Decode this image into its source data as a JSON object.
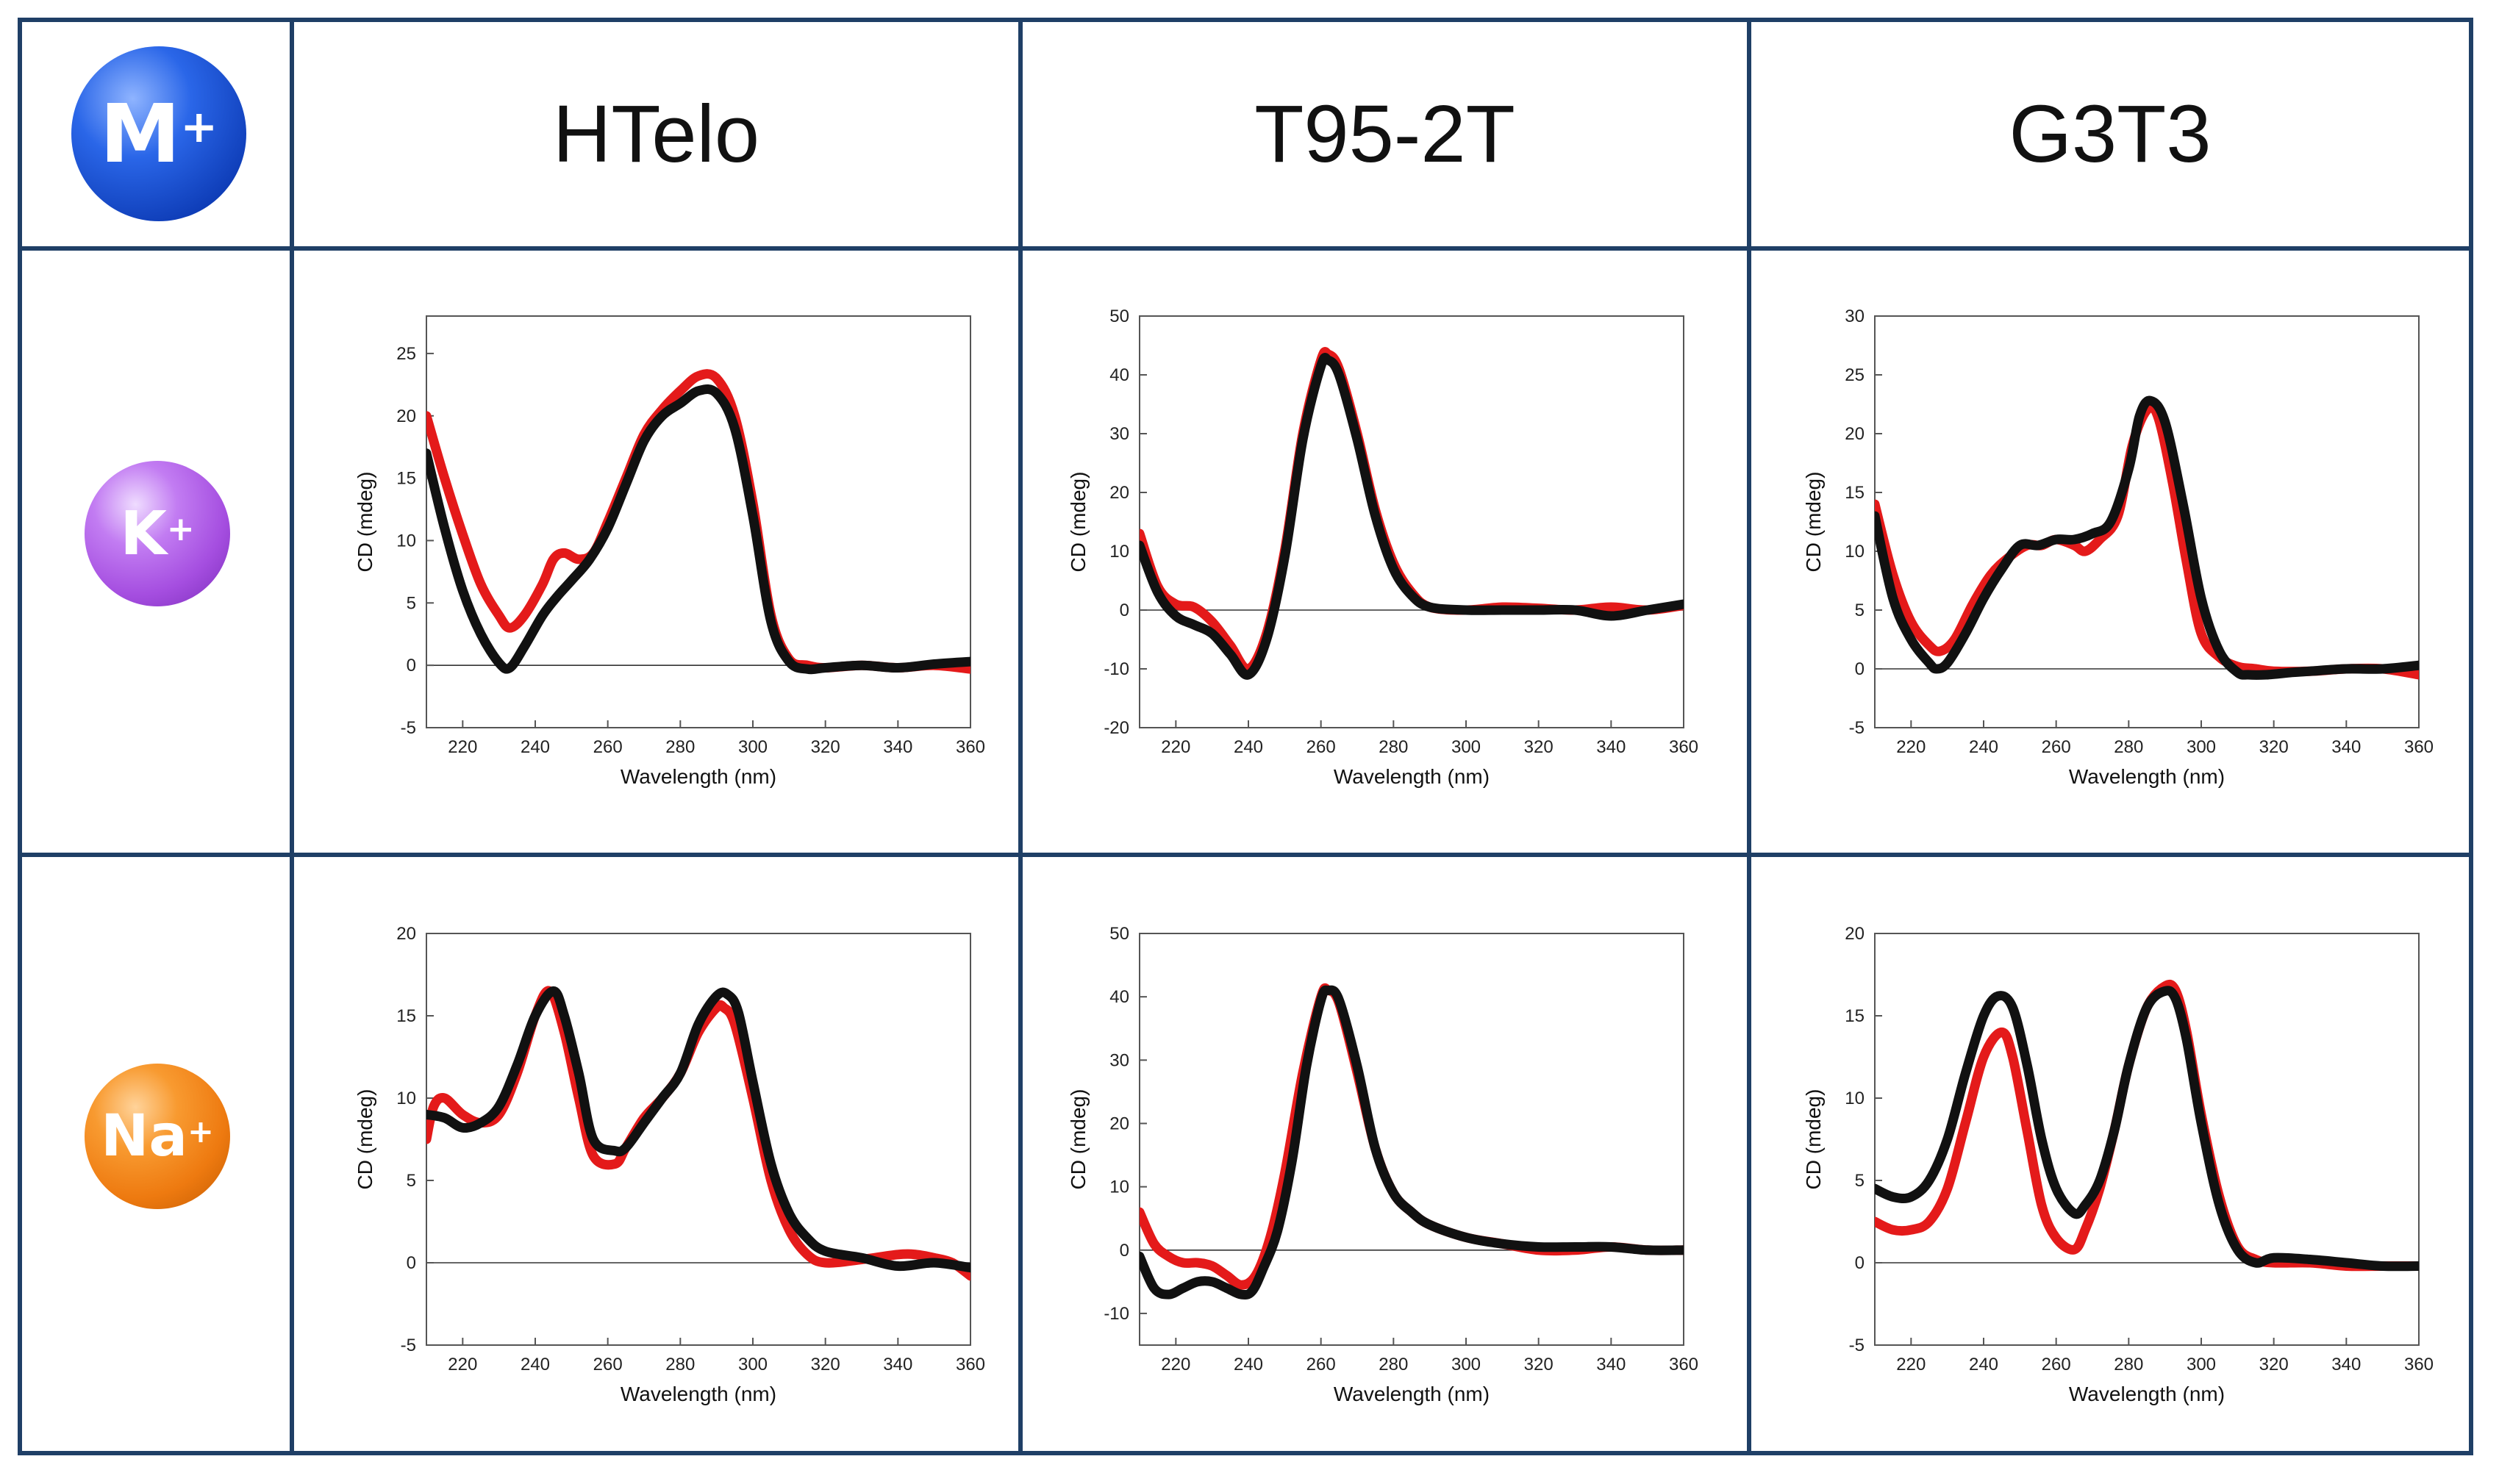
{
  "header": {
    "ion_label": "M",
    "ion_sup": "+",
    "columns": [
      "HTelo",
      "T95-2T",
      "G3T3"
    ]
  },
  "rows": [
    {
      "ion": "K",
      "sup": "+",
      "color": "#a54ee0"
    },
    {
      "ion": "Na",
      "sup": "+",
      "color": "#ee7a10"
    }
  ],
  "colors": {
    "grid": "#1f3f66",
    "red": "#e41a1a",
    "black": "#111111",
    "m_ball": "#1e56d8"
  },
  "chart_data": [
    {
      "type": "line",
      "panel": "HTelo-K",
      "xlabel": "Wavelength (nm)",
      "ylabel": "CD (mdeg)",
      "xlim": [
        210,
        360
      ],
      "ylim": [
        -5,
        28
      ],
      "xticks": [
        220,
        240,
        260,
        280,
        300,
        320,
        340,
        360
      ],
      "xtick_labels": [
        "220",
        "240",
        "260",
        "280",
        "300",
        "320",
        "340",
        "360"
      ],
      "yticks": [
        -5,
        0,
        5,
        10,
        15,
        20,
        25
      ],
      "ytick_labels": [
        "-5",
        "0",
        "5",
        "10",
        "15",
        "20",
        "25"
      ],
      "series": [
        {
          "name": "red",
          "x": [
            210,
            215,
            220,
            225,
            230,
            233,
            237,
            242,
            245,
            248,
            252,
            256,
            260,
            265,
            270,
            275,
            280,
            285,
            290,
            295,
            300,
            305,
            310,
            315,
            320,
            330,
            340,
            350,
            360
          ],
          "y": [
            20,
            15,
            10.5,
            6.5,
            4,
            3,
            4,
            6.5,
            8.5,
            9,
            8.5,
            9,
            11.5,
            15,
            18.5,
            20.5,
            22,
            23.2,
            23,
            20,
            13,
            4,
            0.5,
            0,
            -0.2,
            0,
            -0.2,
            0,
            -0.3
          ]
        },
        {
          "name": "black",
          "x": [
            210,
            215,
            220,
            225,
            230,
            233,
            237,
            242,
            246,
            250,
            255,
            260,
            265,
            270,
            275,
            280,
            285,
            290,
            295,
            300,
            305,
            310,
            315,
            320,
            330,
            340,
            350,
            360
          ],
          "y": [
            17,
            11,
            6,
            2.5,
            0.2,
            -0.2,
            1.5,
            4,
            5.5,
            6.8,
            8.5,
            11,
            14.5,
            18,
            20,
            21,
            22,
            21.8,
            19,
            12,
            3.5,
            0.3,
            -0.3,
            -0.2,
            0,
            -0.2,
            0.1,
            0.3
          ]
        }
      ]
    },
    {
      "type": "line",
      "panel": "T95-2T-K",
      "xlabel": "Wavelength (nm)",
      "ylabel": "CD (mdeg)",
      "xlim": [
        210,
        360
      ],
      "ylim": [
        -20,
        50
      ],
      "xticks": [
        220,
        240,
        260,
        280,
        300,
        320,
        340,
        360
      ],
      "xtick_labels": [
        "220",
        "240",
        "260",
        "280",
        "300",
        "320",
        "340",
        "360"
      ],
      "yticks": [
        -20,
        -10,
        0,
        10,
        20,
        30,
        40,
        50
      ],
      "ytick_labels": [
        "-20",
        "-10",
        "0",
        "10",
        "20",
        "30",
        "40",
        "50"
      ],
      "series": [
        {
          "name": "red",
          "x": [
            210,
            215,
            220,
            225,
            230,
            235,
            240,
            245,
            250,
            255,
            260,
            262,
            265,
            270,
            275,
            280,
            285,
            290,
            300,
            310,
            320,
            330,
            340,
            350,
            360
          ],
          "y": [
            13,
            4,
            1,
            0.5,
            -2,
            -6,
            -10,
            -4,
            10,
            30,
            42.5,
            43.5,
            41,
            30,
            17,
            8,
            3,
            0.5,
            0,
            0.5,
            0.3,
            0,
            0.5,
            0,
            0.8
          ]
        },
        {
          "name": "black",
          "x": [
            210,
            215,
            220,
            225,
            230,
            235,
            240,
            245,
            250,
            255,
            260,
            262,
            265,
            270,
            275,
            280,
            285,
            290,
            300,
            310,
            320,
            330,
            340,
            350,
            360
          ],
          "y": [
            11,
            3,
            -1,
            -2.5,
            -4,
            -7.5,
            -11,
            -5,
            9,
            29,
            41.5,
            42.5,
            40,
            29,
            16,
            7,
            2.5,
            0.5,
            0,
            0,
            0,
            0,
            -1,
            0,
            1
          ]
        }
      ]
    },
    {
      "type": "line",
      "panel": "G3T3-K",
      "xlabel": "Wavelength (nm)",
      "ylabel": "CD (mdeg)",
      "xlim": [
        210,
        360
      ],
      "ylim": [
        -5,
        30
      ],
      "xticks": [
        220,
        240,
        260,
        280,
        300,
        320,
        340,
        360
      ],
      "xtick_labels": [
        "220",
        "240",
        "260",
        "280",
        "300",
        "320",
        "340",
        "360"
      ],
      "yticks": [
        -5,
        0,
        5,
        10,
        15,
        20,
        25,
        30
      ],
      "ytick_labels": [
        "-5",
        "0",
        "5",
        "10",
        "15",
        "20",
        "25",
        "30"
      ],
      "series": [
        {
          "name": "red",
          "x": [
            210,
            215,
            220,
            225,
            228,
            232,
            237,
            242,
            247,
            252,
            256,
            260,
            265,
            268,
            272,
            277,
            281,
            285,
            288,
            292,
            296,
            300,
            305,
            310,
            315,
            320,
            330,
            340,
            350,
            360
          ],
          "y": [
            14,
            8,
            4,
            2,
            1.5,
            2.5,
            5.5,
            8,
            9.5,
            10.5,
            10.5,
            11,
            10.5,
            10,
            11,
            13,
            19,
            22,
            21.5,
            16,
            9,
            3,
            1,
            0.2,
            0,
            -0.2,
            -0.2,
            0,
            0,
            -0.5
          ]
        },
        {
          "name": "black",
          "x": [
            210,
            215,
            220,
            225,
            227,
            230,
            235,
            240,
            245,
            250,
            255,
            260,
            265,
            270,
            275,
            280,
            283,
            286,
            290,
            295,
            300,
            305,
            310,
            313,
            318,
            325,
            330,
            340,
            350,
            360
          ],
          "y": [
            13,
            6,
            2.5,
            0.5,
            0,
            0.5,
            3,
            6,
            8.5,
            10.5,
            10.5,
            11,
            11,
            11.5,
            12.5,
            17,
            21.5,
            22.8,
            21,
            14,
            6,
            1.5,
            -0.3,
            -0.5,
            -0.5,
            -0.3,
            -0.2,
            0,
            0,
            0.3
          ]
        }
      ]
    },
    {
      "type": "line",
      "panel": "HTelo-Na",
      "xlabel": "Wavelength (nm)",
      "ylabel": "CD (mdeg)",
      "xlim": [
        210,
        360
      ],
      "ylim": [
        -5,
        20
      ],
      "xticks": [
        220,
        240,
        260,
        280,
        300,
        320,
        340,
        360
      ],
      "xtick_labels": [
        "220",
        "240",
        "260",
        "280",
        "300",
        "320",
        "340",
        "360"
      ],
      "yticks": [
        -5,
        0,
        5,
        10,
        15,
        20
      ],
      "ytick_labels": [
        "-5",
        "0",
        "5",
        "10",
        "15",
        "20"
      ],
      "series": [
        {
          "name": "red",
          "x": [
            210,
            212,
            215,
            220,
            225,
            230,
            235,
            240,
            244,
            248,
            252,
            256,
            262,
            265,
            270,
            275,
            280,
            285,
            290,
            292,
            295,
            300,
            305,
            310,
            315,
            320,
            330,
            340,
            345,
            350,
            355,
            360
          ],
          "y": [
            7.5,
            9.5,
            10,
            9,
            8.5,
            9,
            11.5,
            15,
            16.5,
            14,
            10,
            6.5,
            6,
            7,
            8.8,
            10,
            11.5,
            14,
            15.5,
            15.5,
            14.5,
            10,
            5,
            2,
            0.5,
            0,
            0.2,
            0.5,
            0.5,
            0.3,
            0,
            -0.8
          ]
        },
        {
          "name": "black",
          "x": [
            210,
            215,
            220,
            225,
            230,
            235,
            240,
            245,
            248,
            252,
            256,
            262,
            265,
            270,
            275,
            280,
            285,
            290,
            293,
            296,
            300,
            305,
            310,
            315,
            320,
            330,
            340,
            350,
            360
          ],
          "y": [
            9,
            8.8,
            8.2,
            8.5,
            9.5,
            12,
            15,
            16.5,
            15,
            11.5,
            7.5,
            6.8,
            7,
            8.5,
            10,
            11.5,
            14.5,
            16.2,
            16.3,
            15.2,
            11,
            6,
            3,
            1.5,
            0.7,
            0.3,
            -0.2,
            0,
            -0.3
          ]
        }
      ]
    },
    {
      "type": "line",
      "panel": "T95-2T-Na",
      "xlabel": "Wavelength (nm)",
      "ylabel": "CD (mdeg)",
      "xlim": [
        210,
        360
      ],
      "ylim": [
        -15,
        50
      ],
      "xticks": [
        220,
        240,
        260,
        280,
        300,
        320,
        340,
        360
      ],
      "xtick_labels": [
        "220",
        "240",
        "260",
        "280",
        "300",
        "320",
        "340",
        "360"
      ],
      "yticks": [
        -10,
        0,
        10,
        20,
        30,
        40,
        50
      ],
      "ytick_labels": [
        "-10",
        "0",
        "10",
        "20",
        "30",
        "40",
        "50"
      ],
      "series": [
        {
          "name": "red",
          "x": [
            210,
            214,
            218,
            222,
            226,
            230,
            234,
            238,
            242,
            246,
            250,
            255,
            260,
            262,
            265,
            270,
            275,
            280,
            285,
            290,
            300,
            310,
            320,
            330,
            340,
            350,
            360
          ],
          "y": [
            6,
            1,
            -1,
            -2,
            -2,
            -2.5,
            -4,
            -5.5,
            -4,
            2,
            12,
            28,
            40,
            41,
            39,
            28,
            16,
            9,
            6,
            4,
            2,
            1,
            0,
            0,
            0.5,
            0,
            0
          ]
        },
        {
          "name": "black",
          "x": [
            210,
            214,
            218,
            222,
            226,
            230,
            234,
            238,
            241,
            244,
            248,
            252,
            256,
            260,
            262,
            265,
            270,
            275,
            280,
            285,
            290,
            300,
            310,
            320,
            330,
            340,
            350,
            360
          ],
          "y": [
            -1,
            -6,
            -7,
            -6,
            -5,
            -5,
            -6,
            -7,
            -6.5,
            -3,
            3,
            14,
            29,
            39.5,
            41,
            39.5,
            29,
            16,
            9,
            6,
            4,
            2,
            1,
            0.5,
            0.5,
            0.5,
            0,
            0
          ]
        }
      ]
    },
    {
      "type": "line",
      "panel": "G3T3-Na",
      "xlabel": "Wavelength (nm)",
      "ylabel": "CD (mdeg)",
      "xlim": [
        210,
        360
      ],
      "ylim": [
        -5,
        20
      ],
      "xticks": [
        220,
        240,
        260,
        280,
        300,
        320,
        340,
        360
      ],
      "xtick_labels": [
        "220",
        "240",
        "260",
        "280",
        "300",
        "320",
        "340",
        "360"
      ],
      "yticks": [
        -5,
        0,
        5,
        10,
        15,
        20
      ],
      "ytick_labels": [
        "-5",
        "0",
        "5",
        "10",
        "15",
        "20"
      ],
      "series": [
        {
          "name": "red",
          "x": [
            210,
            215,
            220,
            225,
            230,
            235,
            240,
            245,
            248,
            252,
            256,
            260,
            265,
            268,
            272,
            276,
            280,
            285,
            290,
            293,
            296,
            300,
            305,
            310,
            315,
            320,
            330,
            340,
            350,
            360
          ],
          "y": [
            2.5,
            2,
            2,
            2.5,
            4.5,
            8.5,
            12.5,
            14,
            12.5,
            8,
            3.5,
            1.5,
            0.8,
            2,
            4.5,
            8,
            12,
            15.5,
            16.8,
            16.5,
            14,
            9,
            4,
            1,
            0.2,
            0,
            0,
            -0.2,
            -0.2,
            -0.2
          ]
        },
        {
          "name": "black",
          "x": [
            210,
            215,
            220,
            225,
            230,
            235,
            240,
            244,
            248,
            252,
            256,
            260,
            265,
            268,
            272,
            276,
            280,
            285,
            290,
            293,
            296,
            300,
            305,
            310,
            315,
            320,
            330,
            340,
            350,
            360
          ],
          "y": [
            4.5,
            4,
            4,
            5,
            7.5,
            11.5,
            15,
            16.2,
            15.5,
            12,
            7.5,
            4.5,
            3,
            3.5,
            5,
            8,
            12,
            15.5,
            16.5,
            16,
            13.5,
            8.5,
            3.5,
            0.8,
            0,
            0.3,
            0.2,
            0,
            -0.2,
            -0.2
          ]
        }
      ]
    }
  ]
}
